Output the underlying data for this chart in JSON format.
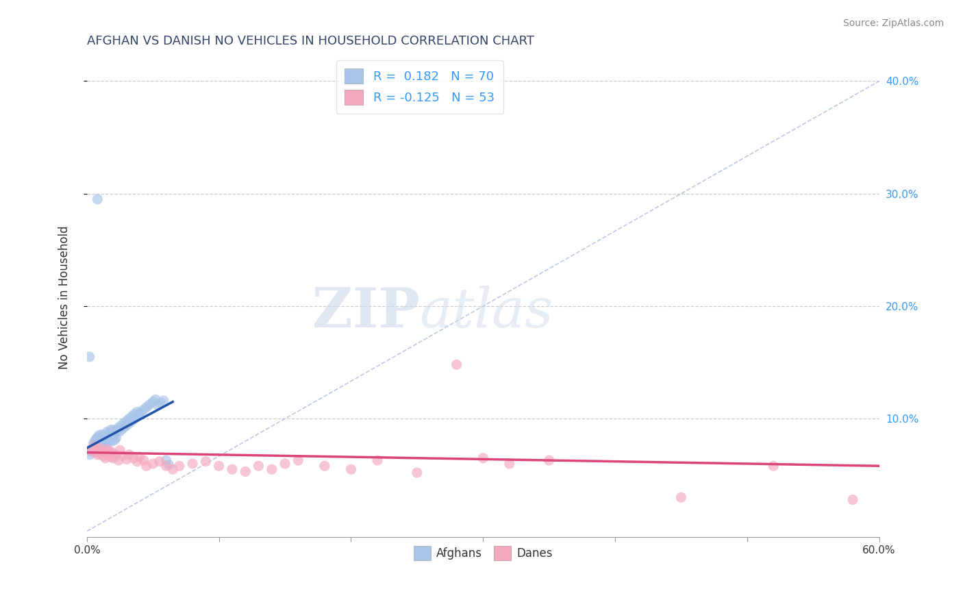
{
  "title": "AFGHAN VS DANISH NO VEHICLES IN HOUSEHOLD CORRELATION CHART",
  "source": "Source: ZipAtlas.com",
  "ylabel": "No Vehicles in Household",
  "xlim": [
    0.0,
    0.6
  ],
  "ylim": [
    -0.005,
    0.42
  ],
  "x_ticks": [
    0.0,
    0.1,
    0.2,
    0.3,
    0.4,
    0.5,
    0.6
  ],
  "x_tick_labels": [
    "0.0%",
    "",
    "",
    "",
    "",
    "",
    "60.0%"
  ],
  "y_ticks_right": [
    0.1,
    0.2,
    0.3,
    0.4
  ],
  "y_tick_labels_right": [
    "10.0%",
    "20.0%",
    "30.0%",
    "40.0%"
  ],
  "afghan_R": 0.182,
  "afghan_N": 70,
  "danish_R": -0.125,
  "danish_N": 53,
  "afghan_color": "#a8c4e8",
  "danish_color": "#f4a8be",
  "afghan_line_color": "#2255aa",
  "danish_line_color": "#dd4477",
  "watermark_zip": "ZIP",
  "watermark_atlas": "atlas",
  "title_color": "#334466",
  "right_tick_color": "#3399ff",
  "background_color": "#ffffff",
  "grid_color": "#cccccc",
  "diagonal_color": "#aabbdd",
  "title_fontsize": 13,
  "source_fontsize": 10,
  "legend_fontsize": 13,
  "scatter_size": 120,
  "scatter_alpha": 0.65,
  "afghan_x": [
    0.002,
    0.003,
    0.004,
    0.005,
    0.005,
    0.006,
    0.006,
    0.007,
    0.007,
    0.008,
    0.008,
    0.009,
    0.009,
    0.01,
    0.01,
    0.011,
    0.011,
    0.012,
    0.012,
    0.013,
    0.013,
    0.014,
    0.014,
    0.015,
    0.015,
    0.016,
    0.016,
    0.017,
    0.017,
    0.018,
    0.018,
    0.019,
    0.019,
    0.02,
    0.02,
    0.021,
    0.021,
    0.022,
    0.022,
    0.023,
    0.024,
    0.025,
    0.026,
    0.027,
    0.028,
    0.029,
    0.03,
    0.031,
    0.032,
    0.033,
    0.034,
    0.035,
    0.036,
    0.037,
    0.038,
    0.039,
    0.04,
    0.042,
    0.044,
    0.046,
    0.048,
    0.05,
    0.052,
    0.054,
    0.056,
    0.058,
    0.06,
    0.062,
    0.002,
    0.008
  ],
  "afghan_y": [
    0.068,
    0.071,
    0.073,
    0.075,
    0.078,
    0.08,
    0.076,
    0.082,
    0.079,
    0.083,
    0.077,
    0.085,
    0.08,
    0.082,
    0.078,
    0.086,
    0.079,
    0.083,
    0.077,
    0.085,
    0.08,
    0.082,
    0.078,
    0.088,
    0.082,
    0.085,
    0.079,
    0.087,
    0.082,
    0.09,
    0.083,
    0.086,
    0.08,
    0.09,
    0.085,
    0.086,
    0.081,
    0.088,
    0.083,
    0.09,
    0.092,
    0.089,
    0.094,
    0.091,
    0.096,
    0.093,
    0.098,
    0.095,
    0.1,
    0.097,
    0.102,
    0.099,
    0.104,
    0.101,
    0.106,
    0.103,
    0.105,
    0.107,
    0.109,
    0.111,
    0.113,
    0.115,
    0.117,
    0.112,
    0.114,
    0.116,
    0.063,
    0.059,
    0.155,
    0.295
  ],
  "danish_x": [
    0.003,
    0.005,
    0.006,
    0.007,
    0.008,
    0.009,
    0.01,
    0.011,
    0.012,
    0.013,
    0.014,
    0.015,
    0.016,
    0.017,
    0.018,
    0.019,
    0.02,
    0.022,
    0.024,
    0.025,
    0.027,
    0.03,
    0.032,
    0.035,
    0.038,
    0.04,
    0.043,
    0.045,
    0.05,
    0.055,
    0.06,
    0.065,
    0.07,
    0.08,
    0.09,
    0.1,
    0.11,
    0.12,
    0.13,
    0.14,
    0.15,
    0.16,
    0.18,
    0.2,
    0.22,
    0.25,
    0.28,
    0.3,
    0.32,
    0.35,
    0.45,
    0.52,
    0.58
  ],
  "danish_y": [
    0.072,
    0.075,
    0.07,
    0.073,
    0.068,
    0.074,
    0.069,
    0.072,
    0.067,
    0.07,
    0.065,
    0.073,
    0.068,
    0.071,
    0.066,
    0.07,
    0.065,
    0.068,
    0.063,
    0.072,
    0.067,
    0.064,
    0.068,
    0.065,
    0.062,
    0.066,
    0.063,
    0.058,
    0.06,
    0.062,
    0.058,
    0.055,
    0.058,
    0.06,
    0.062,
    0.058,
    0.055,
    0.053,
    0.058,
    0.055,
    0.06,
    0.063,
    0.058,
    0.055,
    0.063,
    0.052,
    0.148,
    0.065,
    0.06,
    0.063,
    0.03,
    0.058,
    0.028
  ],
  "afghan_trend_x": [
    0.0,
    0.065
  ],
  "afghan_trend_y": [
    0.074,
    0.115
  ],
  "danish_trend_x": [
    0.0,
    0.6
  ],
  "danish_trend_y": [
    0.07,
    0.058
  ]
}
